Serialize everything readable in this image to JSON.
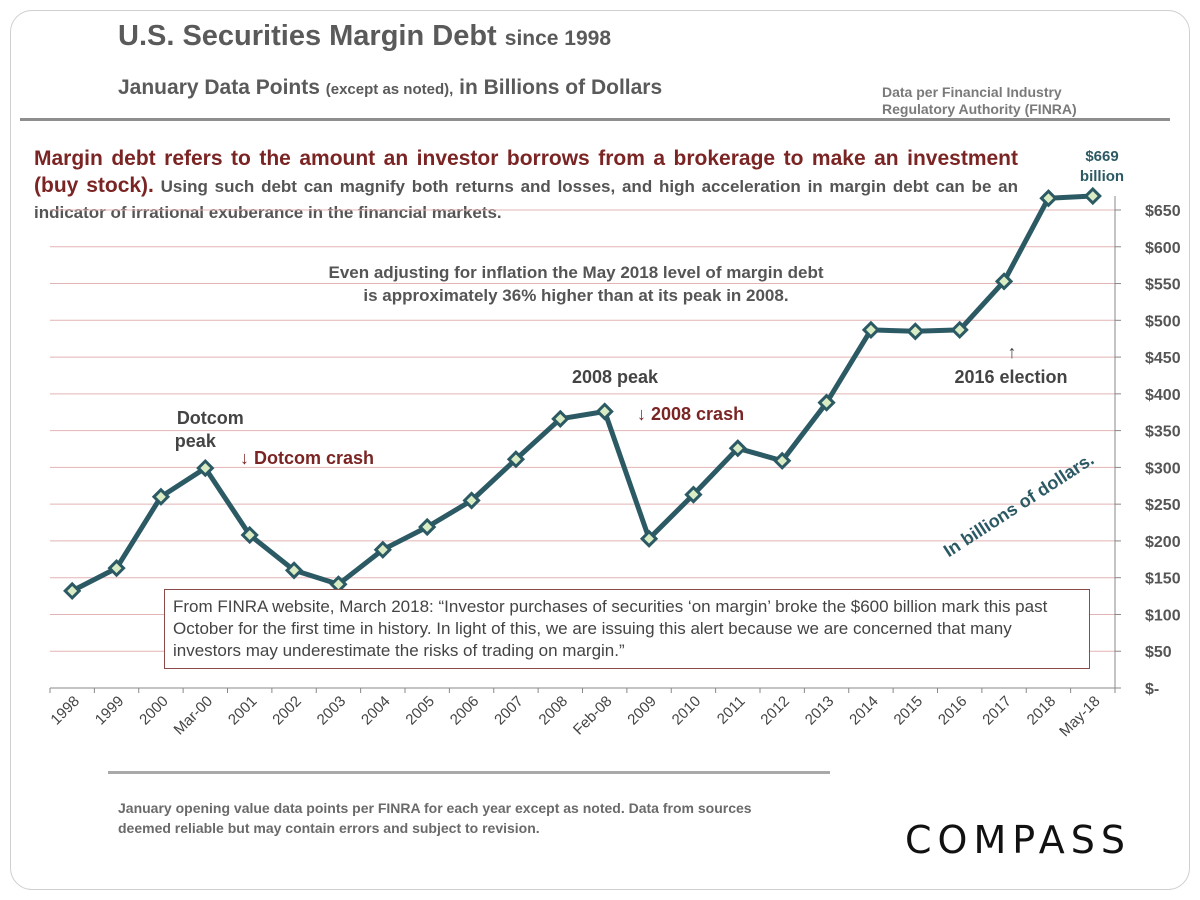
{
  "header": {
    "title_main": "U.S. Securities Margin Debt",
    "title_since": "since 1998",
    "subtitle_a": "January Data Points",
    "subtitle_b": "(except as noted),",
    "subtitle_c": "in Billions  of Dollars",
    "source_line1": "Data per Financial Industry",
    "source_line2": "Regulatory Authority  (FINRA)"
  },
  "intro": {
    "lead": "Margin debt refers to the amount an investor borrows from a brokerage to make an investment (buy stock).",
    "rest": "Using such debt can magnify both returns and losses, and high acceleration in margin debt can be an indicator of irrational exuberance in the financial  markets."
  },
  "inflation_note": {
    "line1": "Even adjusting for inflation the May 2018 level of margin debt",
    "line2": "is approximately 36% higher than at its peak in 2008."
  },
  "quote": "From FINRA website, March 2018: “Investor purchases of securities ‘on margin’ broke the $600 billion mark this past October for the first time in history. In light of this, we are issuing this alert because we are concerned that many investors may underestimate the risks of trading on margin.”",
  "footnote": "January opening value data points per FINRA for each year except as noted. Data from sources  deemed reliable but may contain errors and subject to revision.",
  "logo": "COMPASS",
  "chart_data": {
    "type": "line",
    "categories": [
      "1998",
      "1999",
      "2000",
      "Mar-00",
      "2001",
      "2002",
      "2003",
      "2004",
      "2005",
      "2006",
      "2007",
      "2008",
      "Feb-08",
      "2009",
      "2010",
      "2011",
      "2012",
      "2013",
      "2014",
      "2015",
      "2016",
      "2017",
      "2018",
      "May-18"
    ],
    "values": [
      132,
      163,
      260,
      299,
      208,
      160,
      141,
      188,
      219,
      255,
      311,
      366,
      376,
      203,
      263,
      326,
      309,
      388,
      487,
      485,
      487,
      553,
      666,
      669
    ],
    "ylim": [
      0,
      650
    ],
    "y_ticks": [
      {
        "v": 0,
        "label": "$-"
      },
      {
        "v": 50,
        "label": "$50"
      },
      {
        "v": 100,
        "label": "$100"
      },
      {
        "v": 150,
        "label": "$150"
      },
      {
        "v": 200,
        "label": "$200"
      },
      {
        "v": 250,
        "label": "$250"
      },
      {
        "v": 300,
        "label": "$300"
      },
      {
        "v": 350,
        "label": "$350"
      },
      {
        "v": 400,
        "label": "$400"
      },
      {
        "v": 450,
        "label": "$450"
      },
      {
        "v": 500,
        "label": "$500"
      },
      {
        "v": 550,
        "label": "$550"
      },
      {
        "v": 600,
        "label": "$600"
      },
      {
        "v": 650,
        "label": "$650"
      }
    ],
    "y_axis_side": "right",
    "grid": true,
    "ylabel": "In billions of dollars.",
    "line_color": "#2c5a64",
    "marker_fill": "#d9ecc4",
    "grid_color": "#e3b4b4",
    "annotations": {
      "dotcom_peak": "Dotcom\npeak",
      "dotcom_crash": "↓ Dotcom crash",
      "peak_2008": "2008 peak",
      "crash_2008": "↓ 2008 crash",
      "election_arrow": "↑",
      "election": "2016 election",
      "latest_value": "$669",
      "latest_unit": "billion"
    }
  }
}
